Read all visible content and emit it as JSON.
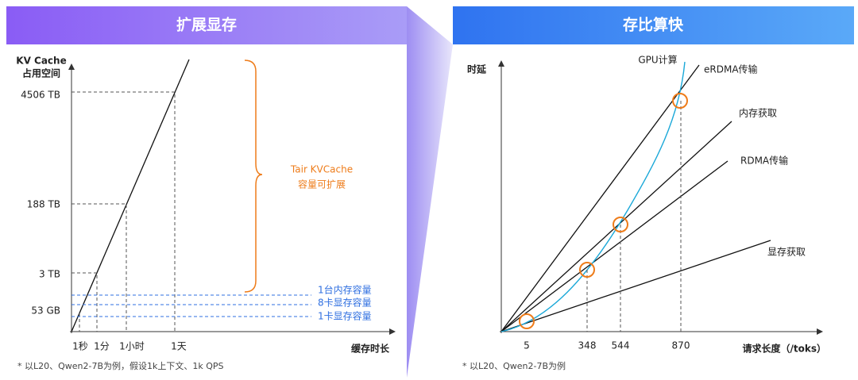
{
  "left": {
    "header": "扩展显存",
    "y_label": [
      "KV Cache",
      "占用空间"
    ],
    "y_ticks": [
      "4506 TB",
      "188 TB",
      "3 TB",
      "53 GB"
    ],
    "x_ticks": [
      "1秒",
      "1分",
      "1小时",
      "1天"
    ],
    "x_label": "缓存时长",
    "brace_label": [
      "Tair KVCache",
      "容量可扩展"
    ],
    "capacity_lines": [
      "1台内存容量",
      "8卡显存容量",
      "1卡显存容量"
    ],
    "footnote": "* 以L20、Qwen2-7B为例，假设1k上下文、1k QPS"
  },
  "right": {
    "header": "存比算快",
    "y_label": "时延",
    "x_label": "请求长度（/toks）",
    "x_ticks": [
      "5",
      "348",
      "544",
      "870"
    ],
    "line_labels": [
      "GPU计算",
      "eRDMA传输",
      "内存获取",
      "RDMA传输",
      "显存获取"
    ],
    "footnote": "* 以L20、Qwen2-7B为例"
  }
}
